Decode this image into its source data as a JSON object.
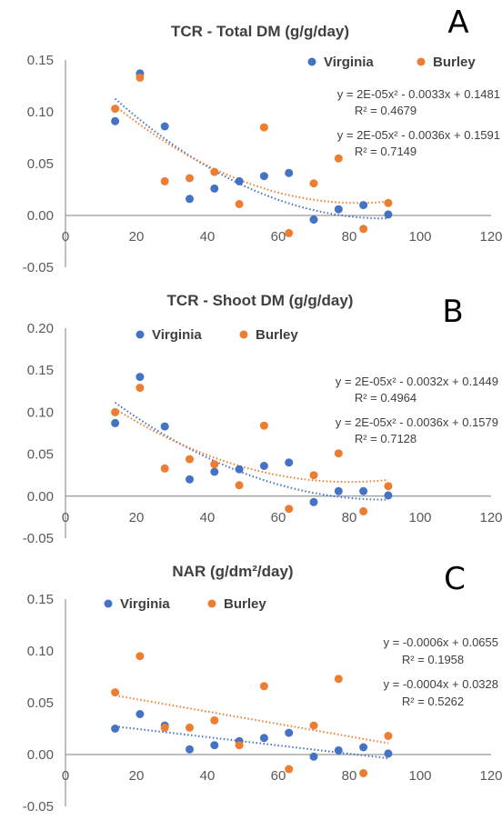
{
  "colors": {
    "virginia": "#4472C4",
    "burley": "#ED7D31",
    "axis": "#7f7f7f",
    "text": "#404040"
  },
  "chart_data": [
    {
      "type": "scatter",
      "title": "TCR - Total DM (g/g/day)",
      "panel_label": "A",
      "xlim": [
        0,
        120
      ],
      "ylim": [
        -0.05,
        0.15
      ],
      "xticks": [
        0,
        20,
        40,
        60,
        80,
        100,
        120
      ],
      "yticks": [
        "-0.05",
        "0.00",
        "0.05",
        "0.10",
        "0.15"
      ],
      "legend_position": "top-right",
      "series": [
        {
          "name": "Virginia",
          "x": [
            14,
            21,
            28,
            35,
            42,
            49,
            56,
            63,
            70,
            77,
            84,
            91
          ],
          "y": [
            0.091,
            0.137,
            0.086,
            0.016,
            0.026,
            0.033,
            0.038,
            0.041,
            -0.004,
            0.006,
            0.01,
            0.001
          ],
          "trend": {
            "type": "poly2",
            "a": 2e-05,
            "b": -0.0036,
            "c": 0.1591,
            "equation": "y = 2E-05x² - 0.0036x + 0.1591",
            "r2": "R² = 0.7149"
          }
        },
        {
          "name": "Burley",
          "x": [
            14,
            21,
            28,
            35,
            42,
            49,
            56,
            63,
            70,
            77,
            84,
            91
          ],
          "y": [
            0.103,
            0.133,
            0.033,
            0.036,
            0.042,
            0.011,
            0.085,
            -0.017,
            0.031,
            0.055,
            -0.013,
            0.012
          ],
          "trend": {
            "type": "poly2",
            "a": 2e-05,
            "b": -0.0033,
            "c": 0.1481,
            "equation": "y = 2E-05x² - 0.0033x + 0.1481",
            "r2": "R² = 0.4679"
          }
        }
      ]
    },
    {
      "type": "scatter",
      "title": "TCR - Shoot DM (g/g/day)",
      "panel_label": "B",
      "xlim": [
        0,
        120
      ],
      "ylim": [
        -0.05,
        0.2
      ],
      "xticks": [
        0,
        20,
        40,
        60,
        80,
        100,
        120
      ],
      "yticks": [
        "-0.05",
        "0.00",
        "0.05",
        "0.10",
        "0.15",
        "0.20"
      ],
      "legend_position": "top-left",
      "series": [
        {
          "name": "Virginia",
          "x": [
            14,
            21,
            28,
            35,
            42,
            49,
            56,
            63,
            70,
            77,
            84,
            91
          ],
          "y": [
            0.087,
            0.142,
            0.083,
            0.02,
            0.029,
            0.032,
            0.036,
            0.04,
            -0.007,
            0.006,
            0.006,
            0.001
          ],
          "trend": {
            "type": "poly2",
            "a": 2e-05,
            "b": -0.0036,
            "c": 0.1579,
            "equation": "y = 2E-05x² - 0.0036x + 0.1579",
            "r2": "R² = 0.7128"
          }
        },
        {
          "name": "Burley",
          "x": [
            14,
            21,
            28,
            35,
            42,
            49,
            56,
            63,
            70,
            77,
            84,
            91
          ],
          "y": [
            0.1,
            0.129,
            0.033,
            0.044,
            0.038,
            0.013,
            0.084,
            -0.015,
            0.025,
            0.051,
            -0.018,
            0.012
          ],
          "trend": {
            "type": "poly2",
            "a": 2e-05,
            "b": -0.0032,
            "c": 0.1449,
            "equation": "y = 2E-05x² - 0.0032x + 0.1449",
            "r2": "R² = 0.4964"
          }
        }
      ]
    },
    {
      "type": "scatter",
      "title": "NAR (g/dm²/day)",
      "panel_label": "C",
      "xlim": [
        0,
        120
      ],
      "ylim": [
        -0.05,
        0.15
      ],
      "xticks": [
        0,
        20,
        40,
        60,
        80,
        100,
        120
      ],
      "yticks": [
        "-0.05",
        "0.00",
        "0.05",
        "0.10",
        "0.15"
      ],
      "legend_position": "top-left",
      "series": [
        {
          "name": "Virginia",
          "x": [
            14,
            21,
            28,
            35,
            42,
            49,
            56,
            63,
            70,
            77,
            84,
            91
          ],
          "y": [
            0.025,
            0.039,
            0.028,
            0.005,
            0.009,
            0.013,
            0.016,
            0.021,
            -0.002,
            0.004,
            0.007,
            0.001
          ],
          "trend": {
            "type": "linear",
            "m": -0.0004,
            "b": 0.0328,
            "equation": "y = -0.0004x + 0.0328",
            "r2": "R² = 0.5262"
          }
        },
        {
          "name": "Burley",
          "x": [
            14,
            21,
            28,
            35,
            42,
            49,
            56,
            63,
            70,
            77,
            84,
            91
          ],
          "y": [
            0.06,
            0.095,
            0.026,
            0.026,
            0.033,
            0.009,
            0.066,
            -0.014,
            0.028,
            0.073,
            -0.018,
            0.018
          ],
          "trend": {
            "type": "linear",
            "m": -0.0006,
            "b": 0.0655,
            "equation": "y = -0.0006x + 0.0655",
            "r2": "R² = 0.1958"
          }
        }
      ]
    }
  ]
}
